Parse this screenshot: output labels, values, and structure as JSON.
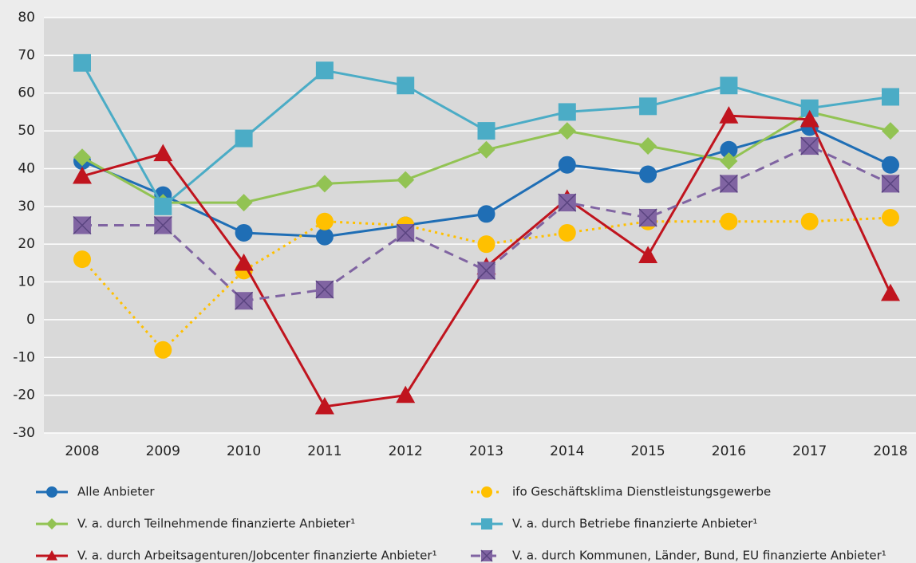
{
  "chart_data": {
    "type": "line",
    "categories": [
      "2008",
      "2009",
      "2010",
      "2011",
      "2012",
      "2013",
      "2014",
      "2015",
      "2016",
      "2017",
      "2018"
    ],
    "ylim": [
      -30,
      80
    ],
    "yticks": [
      -30,
      -20,
      -10,
      0,
      10,
      20,
      30,
      40,
      50,
      60,
      70,
      80
    ],
    "grid": true,
    "series": [
      {
        "name": "Alle Anbieter",
        "color": "#1f6eb5",
        "marker": "circle",
        "dash": "solid",
        "values": [
          42,
          33,
          23,
          22,
          25,
          28,
          41,
          38.5,
          45,
          51,
          41
        ]
      },
      {
        "name": "ifo Geschäftsklima Dienstleistungsgewerbe",
        "color": "#ffc000",
        "marker": "circle",
        "dash": "dotted",
        "values": [
          16,
          -8,
          13,
          26,
          25,
          20,
          23,
          26,
          26,
          26,
          27
        ]
      },
      {
        "name": "V. a. durch Teilnehmende finanzierte Anbieter¹",
        "color": "#92c353",
        "marker": "diamond",
        "dash": "solid",
        "values": [
          43,
          31,
          31,
          36,
          37,
          45,
          50,
          46,
          42,
          55,
          50
        ]
      },
      {
        "name": "V. a. durch Betriebe finanzierte Anbieter¹",
        "color": "#4bacc6",
        "marker": "square",
        "dash": "solid",
        "values": [
          68,
          30,
          48,
          66,
          62,
          50,
          55,
          56.5,
          62,
          56,
          59
        ]
      },
      {
        "name": "V. a. durch Arbeitsagenturen/Jobcenter finanzierte Anbieter¹",
        "color": "#c0141e",
        "marker": "triangle",
        "dash": "solid",
        "values": [
          38,
          44,
          15,
          -23,
          -20,
          14,
          32,
          17,
          54,
          53,
          7
        ]
      },
      {
        "name": "V. a. durch Kommunen, Länder, Bund, EU finanzierte Anbieter¹",
        "color": "#8064a2",
        "marker": "xsquare",
        "dash": "dashed",
        "values": [
          25,
          25,
          5,
          8,
          23,
          13,
          31,
          27,
          36,
          46,
          36
        ]
      }
    ]
  }
}
